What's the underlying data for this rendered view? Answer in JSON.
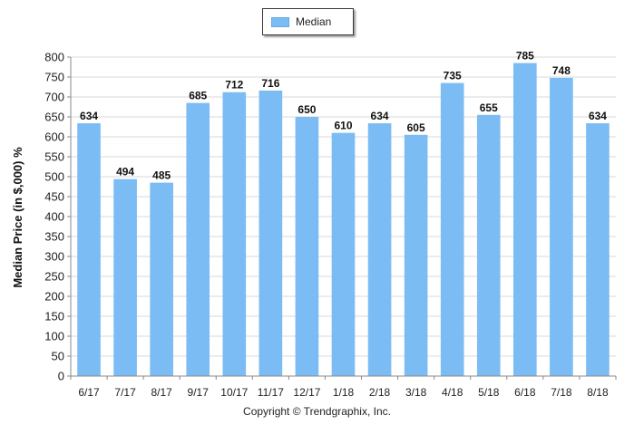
{
  "chart_data": {
    "type": "bar",
    "ylabel": "Median Price (in $,000) %",
    "ylim": [
      0,
      800
    ],
    "ytick_step": 50,
    "categories": [
      "6/17",
      "7/17",
      "8/17",
      "9/17",
      "10/17",
      "11/17",
      "12/17",
      "1/18",
      "2/18",
      "3/18",
      "4/18",
      "5/18",
      "6/18",
      "7/18",
      "8/18"
    ],
    "series": [
      {
        "name": "Median",
        "values": [
          634,
          494,
          485,
          685,
          712,
          716,
          650,
          610,
          634,
          605,
          735,
          655,
          785,
          748,
          634
        ]
      }
    ],
    "data_labels": [
      "634",
      "494",
      "485",
      "685",
      "712",
      "716",
      "650",
      "610",
      "634",
      "605",
      "735",
      "655",
      "785",
      "748",
      "634"
    ],
    "grid": true,
    "legend_position": "top-center",
    "bar_color": "#7cbcf4",
    "copyright": "Copyright © Trendgraphix, Inc."
  }
}
